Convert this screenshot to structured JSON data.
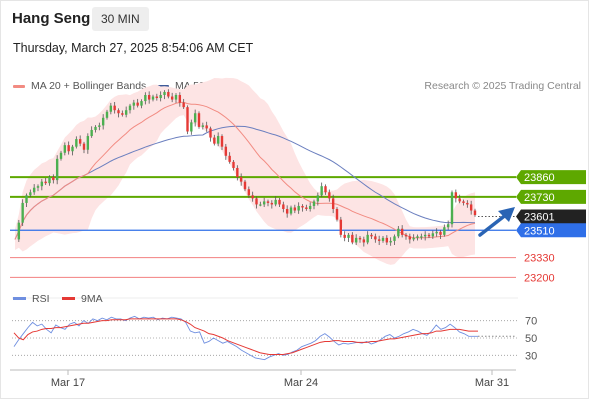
{
  "header": {
    "title": "Hang Seng",
    "timeframe": "30 MIN"
  },
  "timestamp": "Thursday, March 27, 2025 8:54:06 AM CET",
  "legend": [
    {
      "label": "MA 20 + Bollinger Bands",
      "color": "#f28b82"
    },
    {
      "label": "MA 50",
      "color": "#3d5a99"
    }
  ],
  "credit": "Research © 2025 Trading Central",
  "colors": {
    "bullish": "#4caf50",
    "bearish": "#e53935",
    "wick": "#555555",
    "bollinger_fill": "#fde4e4",
    "ma20": "#f28b82",
    "ma50": "#6b7fbf",
    "resistance": "#5ea800",
    "pivot": "#2f6fe8",
    "support": "#f28080",
    "arrow": "#2a64b4"
  },
  "chart_data": [
    {
      "type": "candlestick",
      "title": "Hang Seng",
      "timeframe": "30 MIN",
      "x_labels": [
        "Mar 17",
        "Mar 24",
        "Mar 31"
      ],
      "ylim": [
        23150,
        24400
      ],
      "price_series": [
        23450,
        23560,
        23690,
        23740,
        23760,
        23790,
        23800,
        23830,
        23820,
        23860,
        23840,
        23980,
        24020,
        24070,
        24030,
        24060,
        24110,
        24080,
        24040,
        24130,
        24170,
        24190,
        24200,
        24250,
        24290,
        24330,
        24300,
        24280,
        24270,
        24300,
        24330,
        24350,
        24330,
        24360,
        24400,
        24370,
        24390,
        24380,
        24400,
        24420,
        24390,
        24370,
        24400,
        24350,
        24320,
        24160,
        24220,
        24280,
        24190,
        24200,
        24180,
        24120,
        24080,
        24130,
        24060,
        24000,
        23960,
        23920,
        23860,
        23830,
        23780,
        23740,
        23720,
        23680,
        23680,
        23700,
        23690,
        23680,
        23710,
        23680,
        23650,
        23620,
        23660,
        23640,
        23670,
        23660,
        23650,
        23670,
        23700,
        23740,
        23800,
        23760,
        23720,
        23650,
        23580,
        23480,
        23460,
        23480,
        23430,
        23460,
        23450,
        23430,
        23480,
        23470,
        23450,
        23440,
        23460,
        23430,
        23440,
        23470,
        23520,
        23480,
        23470,
        23450,
        23460,
        23470,
        23470,
        23480,
        23470,
        23490,
        23500,
        23480,
        23530,
        23550,
        23760,
        23720,
        23700,
        23690,
        23680,
        23640,
        23610
      ],
      "indicators": {
        "ma20_label": "MA 20 + Bollinger Bands",
        "ma50_label": "MA 50"
      },
      "levels": [
        {
          "value": 23860,
          "label": "23860",
          "kind": "resistance"
        },
        {
          "value": 23730,
          "label": "23730",
          "kind": "resistance"
        },
        {
          "value": 23601,
          "label": "23601",
          "kind": "last"
        },
        {
          "value": 23510,
          "label": "23510",
          "kind": "pivot"
        },
        {
          "value": 23330,
          "label": "23330",
          "kind": "support"
        },
        {
          "value": 23200,
          "label": "23200",
          "kind": "support"
        }
      ],
      "forecast": "up"
    },
    {
      "type": "line",
      "legend": [
        "RSI",
        "9MA"
      ],
      "y_ticks": [
        70,
        50,
        30
      ],
      "ylim": [
        20,
        80
      ],
      "rsi": [
        40,
        48,
        55,
        62,
        68,
        64,
        66,
        60,
        56,
        65,
        62,
        60,
        66,
        68,
        64,
        70,
        67,
        72,
        70,
        73,
        71,
        74,
        72,
        72,
        70,
        73,
        75,
        72,
        74,
        73,
        74,
        71,
        73,
        72,
        74,
        73,
        72,
        68,
        58,
        56,
        57,
        44,
        46,
        50,
        47,
        44,
        46,
        43,
        40,
        36,
        33,
        30,
        27,
        26,
        25,
        28,
        30,
        32,
        30,
        31,
        34,
        36,
        40,
        42,
        44,
        47,
        52,
        55,
        51,
        46,
        42,
        44,
        43,
        44,
        45,
        44,
        46,
        43,
        45,
        48,
        52,
        54,
        50,
        52,
        55,
        57,
        60,
        58,
        55,
        53,
        58,
        65,
        60,
        62,
        66,
        62,
        57,
        55,
        52,
        52,
        52
      ],
      "ma9": [
        56,
        50,
        48,
        54,
        57,
        58,
        60,
        61,
        61,
        62,
        62,
        63,
        64,
        65,
        66,
        67,
        67,
        68,
        69,
        70,
        70,
        71,
        71,
        71,
        71,
        72,
        72,
        72,
        72,
        72,
        72,
        72,
        72,
        72,
        72,
        72,
        71,
        69,
        66,
        62,
        60,
        58,
        55,
        54,
        52,
        50,
        47,
        45,
        43,
        41,
        39,
        37,
        35,
        33,
        32,
        31,
        31,
        31,
        31,
        32,
        33,
        35,
        37,
        39,
        41,
        43,
        45,
        46,
        46,
        47,
        47,
        46,
        46,
        46,
        45,
        45,
        45,
        46,
        46,
        47,
        48,
        49,
        49,
        50,
        51,
        52,
        53,
        54,
        55,
        55,
        56,
        58,
        58,
        59,
        60,
        60,
        60,
        59,
        58,
        58,
        58
      ]
    }
  ]
}
